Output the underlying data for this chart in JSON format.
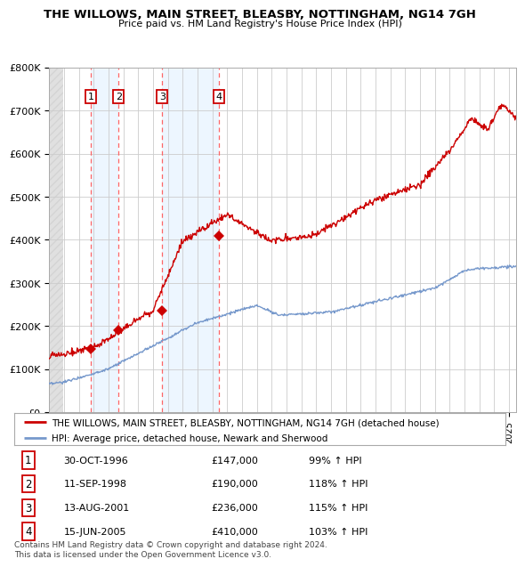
{
  "title": "THE WILLOWS, MAIN STREET, BLEASBY, NOTTINGHAM, NG14 7GH",
  "subtitle": "Price paid vs. HM Land Registry's House Price Index (HPI)",
  "ylim": [
    0,
    800000
  ],
  "yticks": [
    0,
    100000,
    200000,
    300000,
    400000,
    500000,
    600000,
    700000,
    800000
  ],
  "ytick_labels": [
    "£0",
    "£100K",
    "£200K",
    "£300K",
    "£400K",
    "£500K",
    "£600K",
    "£700K",
    "£800K"
  ],
  "hpi_color": "#7799cc",
  "price_color": "#cc0000",
  "grid_color": "#cccccc",
  "sale_dates_year": [
    1996.83,
    1998.69,
    2001.62,
    2005.45
  ],
  "sale_prices": [
    147000,
    190000,
    236000,
    410000
  ],
  "sale_labels": [
    "1",
    "2",
    "3",
    "4"
  ],
  "legend_line1": "THE WILLOWS, MAIN STREET, BLEASBY, NOTTINGHAM, NG14 7GH (detached house)",
  "legend_line2": "HPI: Average price, detached house, Newark and Sherwood",
  "table_data": [
    [
      "1",
      "30-OCT-1996",
      "£147,000",
      "99% ↑ HPI"
    ],
    [
      "2",
      "11-SEP-1998",
      "£190,000",
      "118% ↑ HPI"
    ],
    [
      "3",
      "13-AUG-2001",
      "£236,000",
      "115% ↑ HPI"
    ],
    [
      "4",
      "15-JUN-2005",
      "£410,000",
      "103% ↑ HPI"
    ]
  ],
  "footnote": "Contains HM Land Registry data © Crown copyright and database right 2024.\nThis data is licensed under the Open Government Licence v3.0.",
  "xmin": 1994.0,
  "xmax": 2025.5
}
